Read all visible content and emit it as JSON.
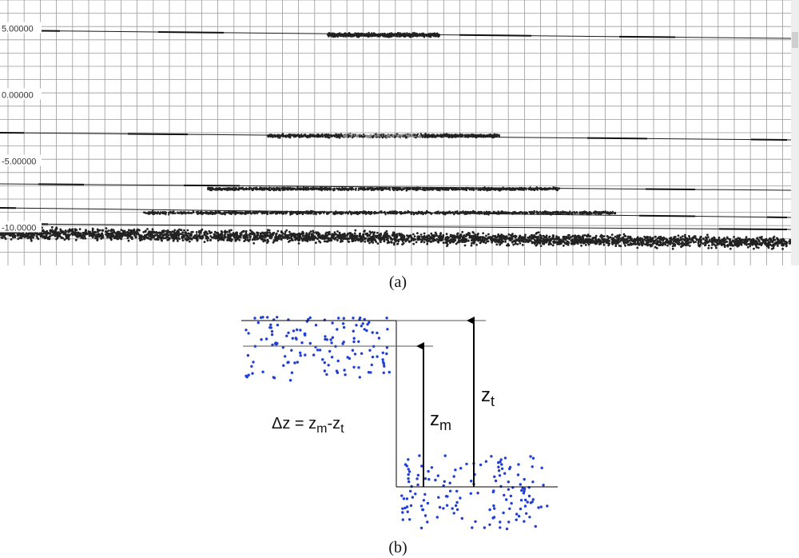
{
  "panel_a": {
    "y_tick_labels": [
      "5.00000",
      "0.00000",
      "-5.00000",
      "-10.0000"
    ],
    "y_ticks": [
      5,
      0,
      -5,
      -10
    ],
    "grid": true,
    "point_color": "#222222",
    "line_color": "#1a1a1a",
    "grid_color": "#9a9a9a",
    "background": "#ffffff"
  },
  "chart_data": {
    "type": "scatter",
    "y_ticks": [
      5,
      0,
      -5,
      -10
    ],
    "grid": true,
    "series": [
      {
        "name": "",
        "y": 4.5
      },
      {
        "name": "",
        "y": -3.1
      },
      {
        "name": "",
        "y": -7.1
      },
      {
        "name": "",
        "y": -8.9
      },
      {
        "name": "",
        "y": -10.8
      }
    ]
  },
  "panel_b": {
    "labels": {
      "z_m": "z",
      "z_m_sub": "m",
      "z_t": "z",
      "z_t_sub": "t",
      "delta_z": "Δz = z",
      "delta_z_sub1": "m",
      "delta_z_mid": "-z",
      "delta_z_sub2": "t"
    },
    "point_color": "#1f3fd6",
    "line_color": "#000000"
  },
  "captions": {
    "a": "(a)",
    "b": "(b)"
  }
}
